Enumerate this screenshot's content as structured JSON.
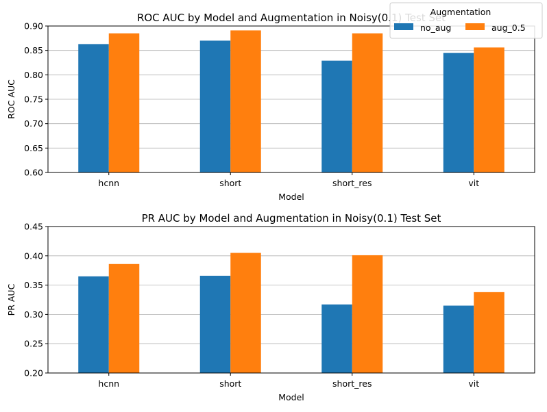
{
  "legend": {
    "title": "Augmentation",
    "placement": "top-right",
    "entries": [
      "no_aug",
      "aug_0.5"
    ]
  },
  "colors": {
    "no_aug": "#1f77b4",
    "aug_0.5": "#ff7f0e",
    "grid": "#b0b0b0"
  },
  "chart_data": [
    {
      "type": "bar",
      "title": "ROC AUC by Model and Augmentation in Noisy(0.1) Test Set",
      "xlabel": "Model",
      "ylabel": "ROC AUC",
      "ylim": [
        0.6,
        0.9
      ],
      "yticks": [
        "0.60",
        "0.65",
        "0.70",
        "0.75",
        "0.80",
        "0.85",
        "0.90"
      ],
      "grid": "y",
      "categories": [
        "hcnn",
        "short",
        "short_res",
        "vit"
      ],
      "series": [
        {
          "name": "no_aug",
          "values": [
            0.863,
            0.87,
            0.829,
            0.845
          ]
        },
        {
          "name": "aug_0.5",
          "values": [
            0.885,
            0.891,
            0.885,
            0.856
          ]
        }
      ]
    },
    {
      "type": "bar",
      "title": "PR AUC by Model and Augmentation in Noisy(0.1) Test Set",
      "xlabel": "Model",
      "ylabel": "PR AUC",
      "ylim": [
        0.2,
        0.45
      ],
      "yticks": [
        "0.20",
        "0.25",
        "0.30",
        "0.35",
        "0.40",
        "0.45"
      ],
      "grid": "y",
      "categories": [
        "hcnn",
        "short",
        "short_res",
        "vit"
      ],
      "series": [
        {
          "name": "no_aug",
          "values": [
            0.365,
            0.366,
            0.317,
            0.315
          ]
        },
        {
          "name": "aug_0.5",
          "values": [
            0.386,
            0.405,
            0.401,
            0.338
          ]
        }
      ]
    }
  ]
}
